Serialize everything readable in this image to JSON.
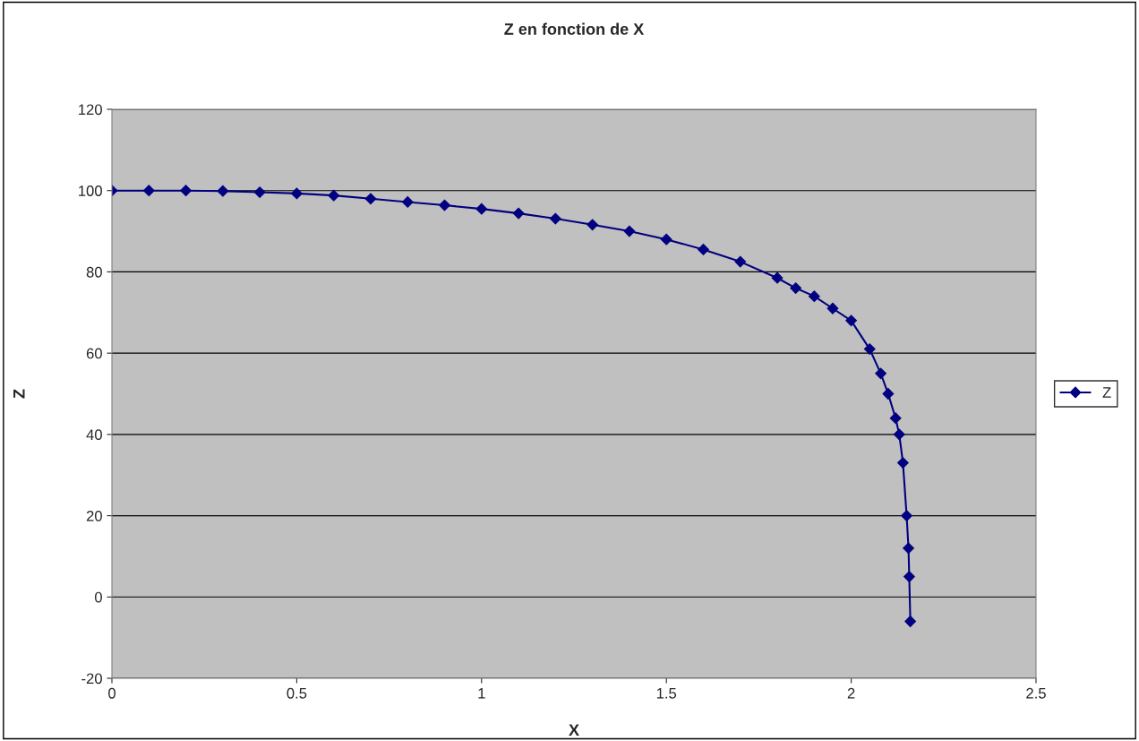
{
  "chart_data": {
    "type": "line",
    "title": "Z en fonction de X",
    "xlabel": "X",
    "ylabel": "Z",
    "series": [
      {
        "name": "Z",
        "color": "#000080",
        "x": [
          0,
          0.1,
          0.2,
          0.3,
          0.4,
          0.5,
          0.6,
          0.7,
          0.8,
          0.9,
          1.0,
          1.1,
          1.2,
          1.3,
          1.4,
          1.5,
          1.6,
          1.7,
          1.8,
          1.85,
          1.9,
          1.95,
          2.0,
          2.05,
          2.08,
          2.1,
          2.12,
          2.13,
          2.14,
          2.15,
          2.155,
          2.157,
          2.16
        ],
        "values": [
          100,
          100,
          100,
          99.9,
          99.6,
          99.3,
          98.8,
          98,
          97.2,
          96.4,
          95.5,
          94.4,
          93.1,
          91.6,
          90,
          88,
          85.5,
          82.5,
          78.5,
          76,
          74,
          71,
          68,
          61,
          55,
          50,
          44,
          40,
          33,
          20,
          12,
          5,
          -6
        ]
      }
    ],
    "xlim": [
      0,
      2.5
    ],
    "xticks": [
      0,
      0.5,
      1,
      1.5,
      2,
      2.5
    ],
    "ylim": [
      -20,
      120
    ],
    "yticks": [
      -20,
      0,
      20,
      40,
      60,
      80,
      100,
      120
    ],
    "grid": "y",
    "legend": "right",
    "marker": "diamond",
    "line_style": "solid"
  }
}
